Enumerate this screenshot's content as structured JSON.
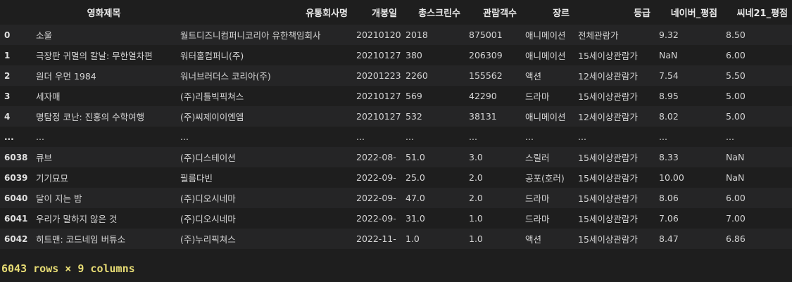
{
  "dataframe": {
    "columns": [
      "",
      "영화제목",
      "유통회사명",
      "개봉일",
      "총스크린수",
      "관람객수",
      "장르",
      "등급",
      "네이버_평점",
      "씨네21_평점"
    ],
    "rows": [
      [
        "0",
        "소울",
        "월트디즈니컴퍼니코리아 유한책임회사",
        "20210120",
        "2018",
        "875001",
        "애니메이션",
        "전체관람가",
        "9.32",
        "8.50"
      ],
      [
        "1",
        "극장판 귀멸의 칼날: 무한열차편",
        "워터홀컴퍼니(주)",
        "20210127",
        "380",
        "206309",
        "애니메이션",
        "15세이상관람가",
        "NaN",
        "6.00"
      ],
      [
        "2",
        "원더 우먼 1984",
        "워너브러더스 코리아(주)",
        "20201223",
        "2260",
        "155562",
        "액션",
        "12세이상관람가",
        "7.54",
        "5.50"
      ],
      [
        "3",
        "세자매",
        "(주)리틀빅픽쳐스",
        "20210127",
        "569",
        "42290",
        "드라마",
        "15세이상관람가",
        "8.95",
        "5.00"
      ],
      [
        "4",
        "명탐정 코난: 진홍의 수학여행",
        "(주)씨제이이엔엠",
        "20210127",
        "532",
        "38131",
        "애니메이션",
        "12세이상관람가",
        "8.02",
        "5.00"
      ],
      [
        "...",
        "...",
        "...",
        "...",
        "...",
        "...",
        "...",
        "...",
        "...",
        "..."
      ],
      [
        "6038",
        "큐브",
        "(주)디스테이션",
        "2022-08-",
        "51.0",
        "3.0",
        "스릴러",
        "15세이상관람가",
        "8.33",
        "NaN"
      ],
      [
        "6039",
        "기기묘묘",
        "필름다빈",
        "2022-09-",
        "25.0",
        "2.0",
        "공포(호러)",
        "15세이상관람가",
        "10.00",
        "NaN"
      ],
      [
        "6040",
        "달이 지는 밤",
        "(주)디오시네마",
        "2022-09-",
        "47.0",
        "2.0",
        "드라마",
        "15세이상관람가",
        "8.06",
        "6.00"
      ],
      [
        "6041",
        "우리가 말하지 않은 것",
        "(주)디오시네마",
        "2022-09-",
        "31.0",
        "1.0",
        "드라마",
        "15세이상관람가",
        "7.06",
        "7.00"
      ],
      [
        "6042",
        "히트맨: 코드네임 버튜소",
        "(주)누리픽쳐스",
        "2022-11-",
        "1.0",
        "1.0",
        "액션",
        "15세이상관람가",
        "8.47",
        "6.86"
      ]
    ],
    "shape_text": "6043 rows × 9 columns"
  }
}
